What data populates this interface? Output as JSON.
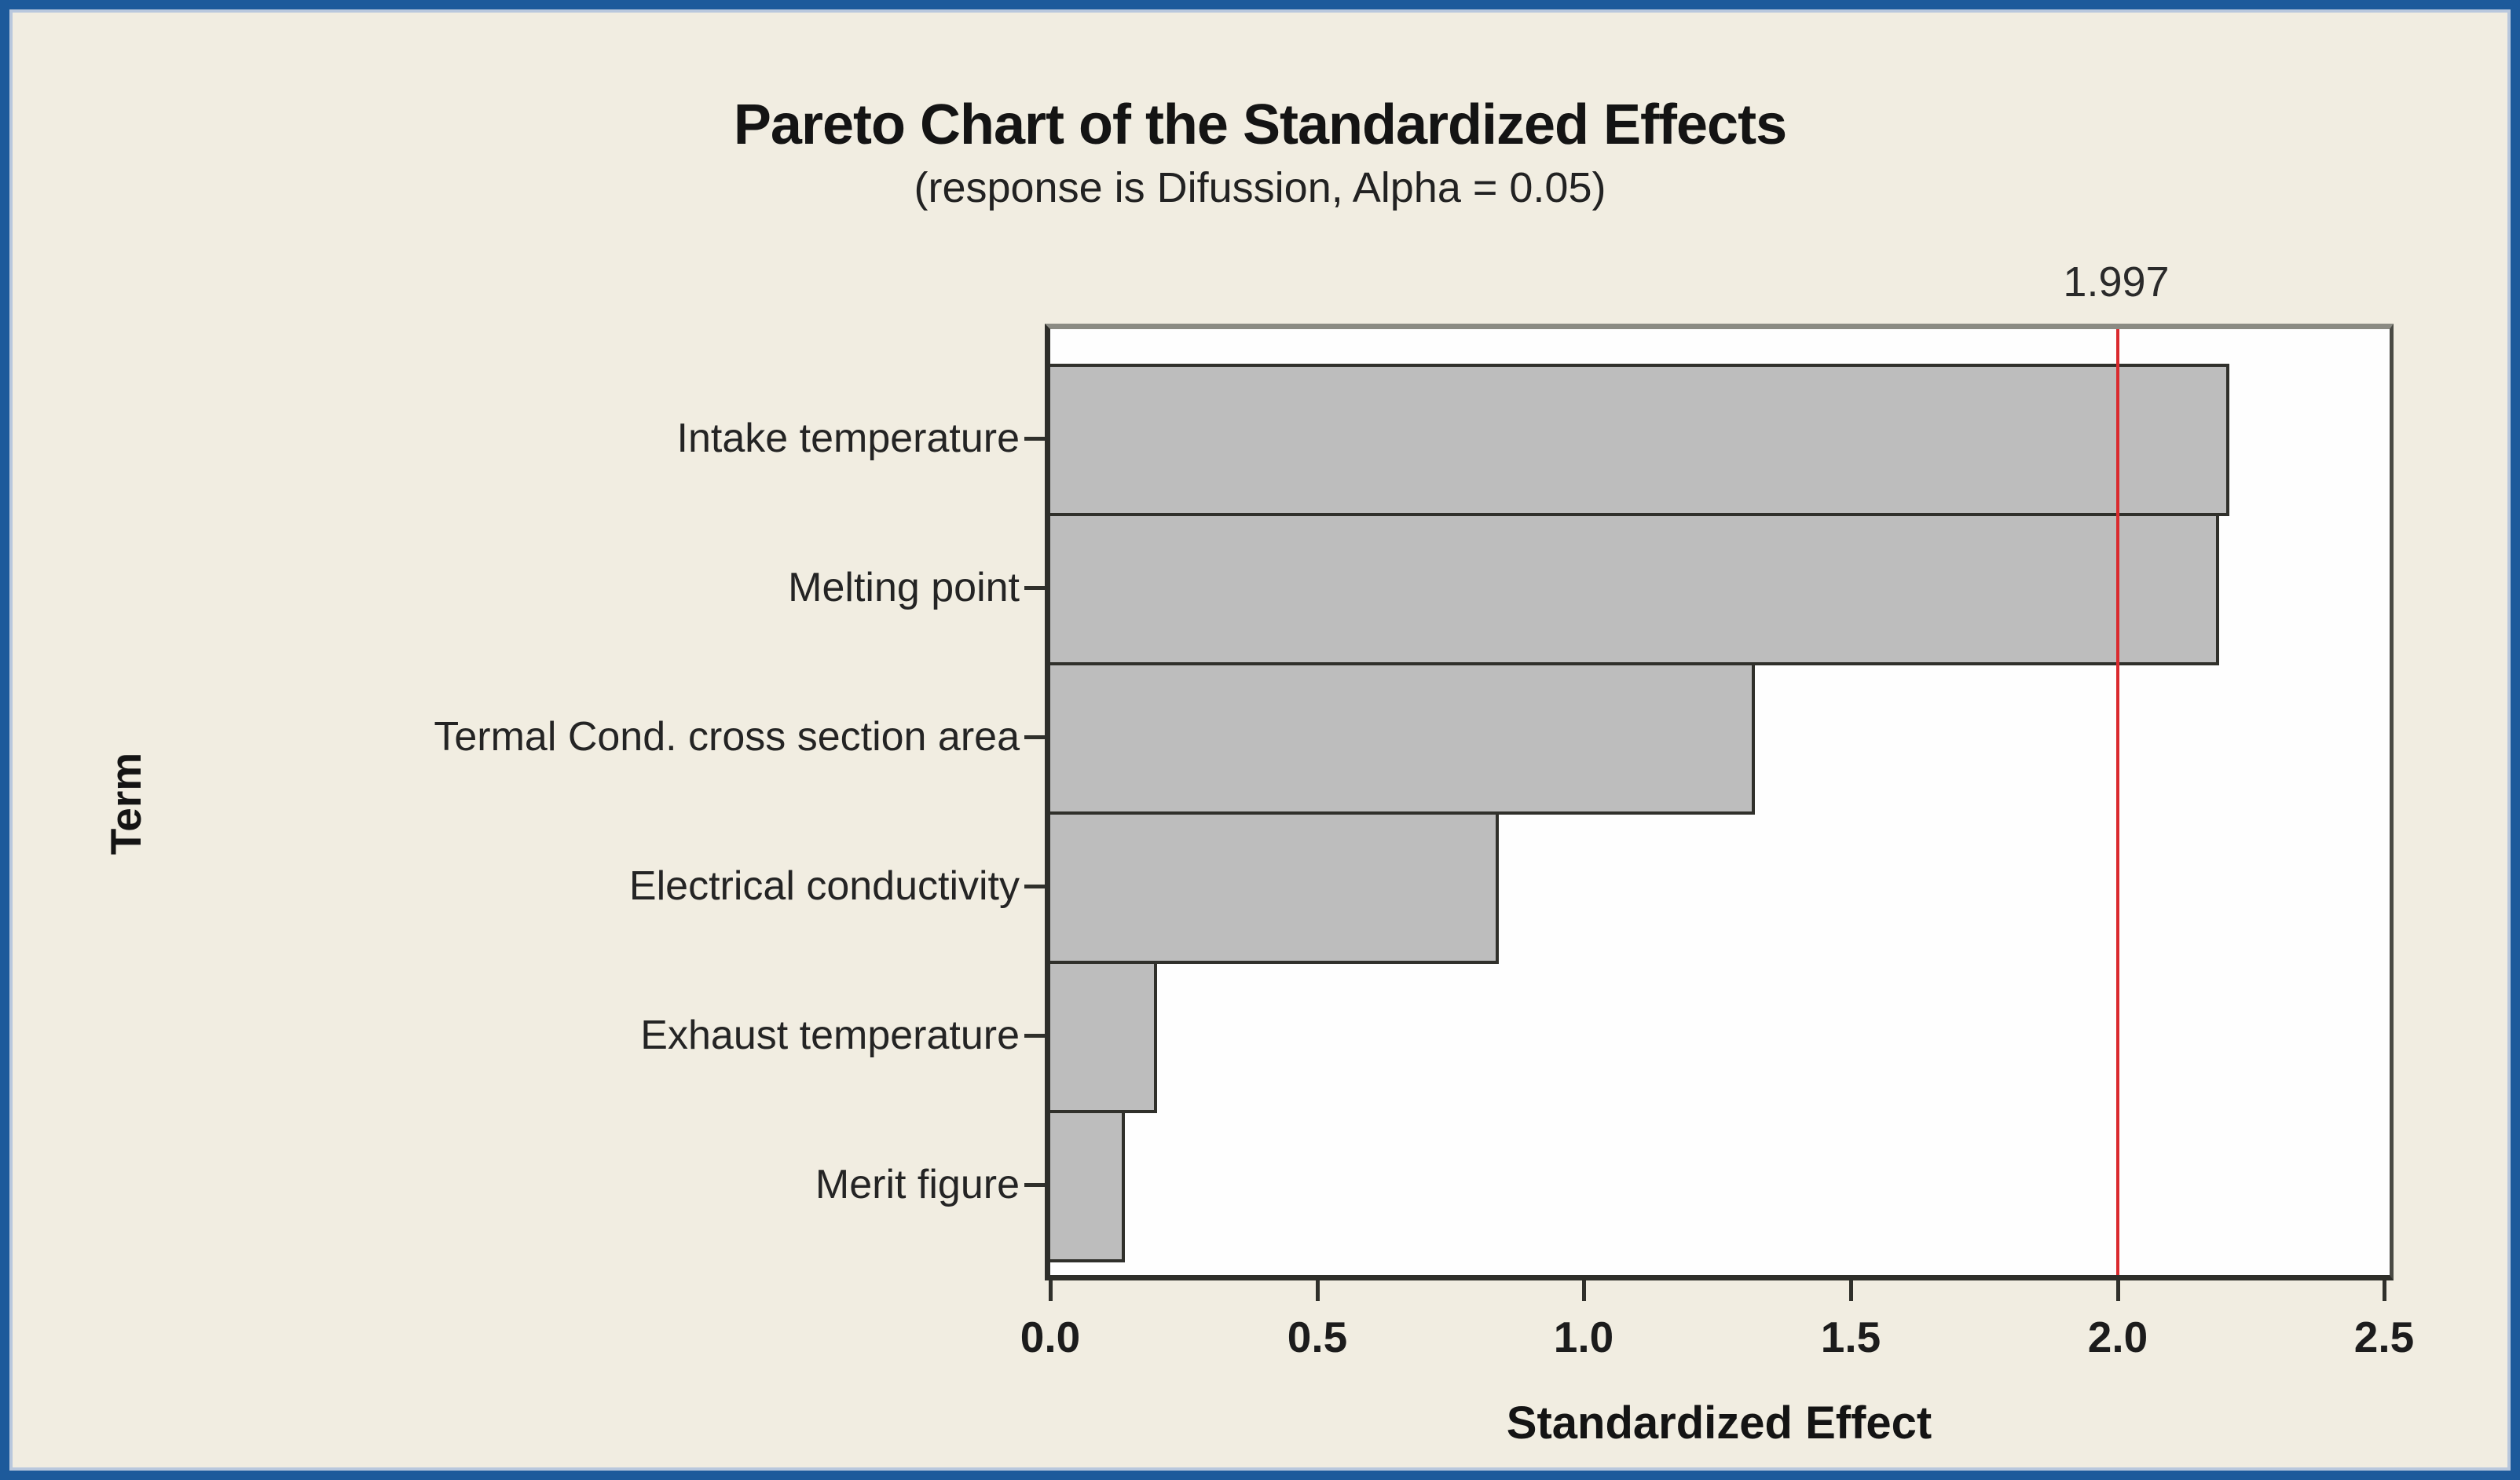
{
  "frame": {
    "border_color": "#1d5a9b",
    "background_color": "#f1ede1",
    "plot_background": "#fefefe"
  },
  "chart_data": {
    "type": "bar",
    "orientation": "horizontal",
    "title": "Pareto Chart of the Standardized Effects",
    "subtitle": "(response is Difussion, Alpha = 0.05)",
    "xlabel": "Standardized Effect",
    "ylabel": "Term",
    "categories": [
      "Intake temperature",
      "Melting point",
      "Termal Cond. cross section area",
      "Electrical conductivity",
      "Exhaust temperature",
      "Merit figure"
    ],
    "values": [
      2.21,
      2.19,
      1.32,
      0.84,
      0.2,
      0.14
    ],
    "xlim": [
      0,
      2.51
    ],
    "x_tick_values": [
      0.0,
      0.5,
      1.0,
      1.5,
      2.0,
      2.5
    ],
    "x_tick_labels": [
      "0.0",
      "0.5",
      "1.0",
      "1.5",
      "2.0",
      "2.5"
    ],
    "reference_line": {
      "value": 1.997,
      "label": "1.997",
      "color": "#da2a2e"
    },
    "bar_color": "#bdbdbd",
    "bar_border_color": "#30302b",
    "grid": false,
    "legend": null
  }
}
